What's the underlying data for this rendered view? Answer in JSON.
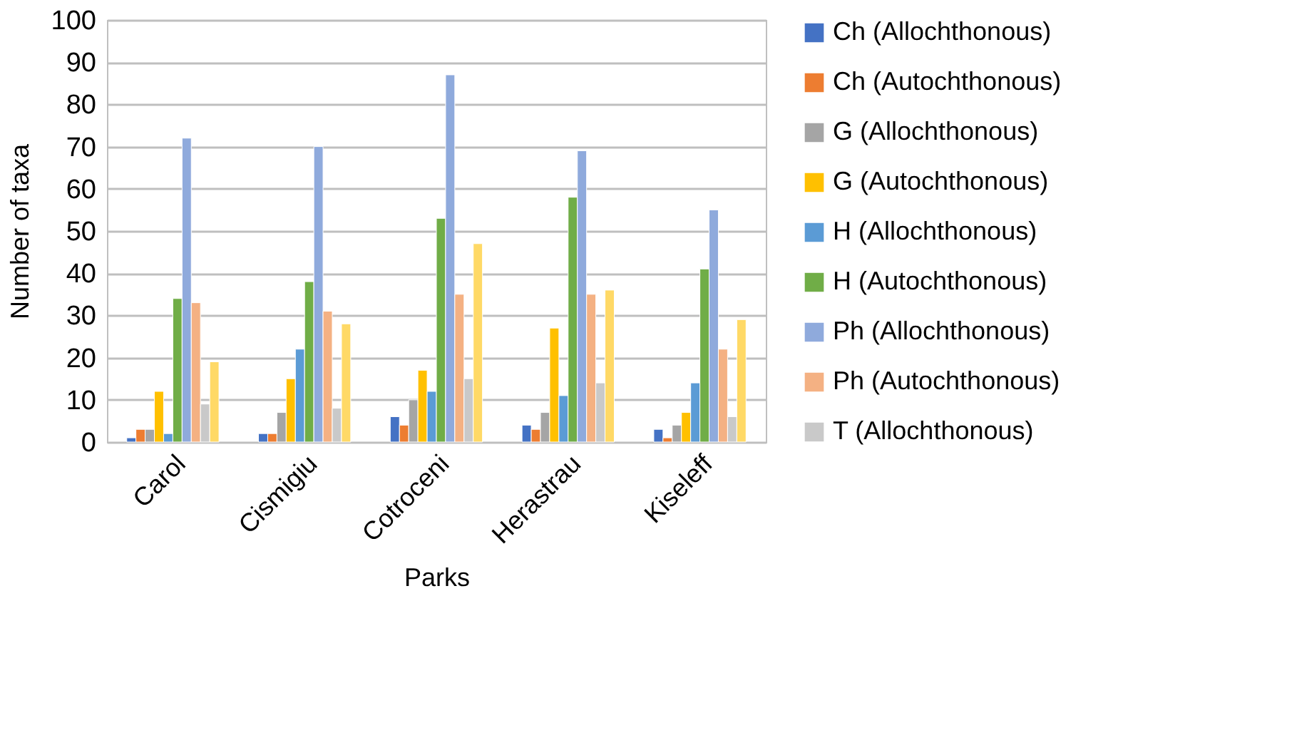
{
  "chart_data": {
    "type": "bar",
    "xlabel": "Parks",
    "ylabel": "Number of taxa",
    "categories": [
      "Carol",
      "Cismigiu",
      "Cotroceni",
      "Herastrau",
      "Kiseleff"
    ],
    "series": [
      {
        "name": "Ch (Allochthonous)",
        "color": "#4472c4",
        "values": [
          1,
          2,
          6,
          4,
          3
        ]
      },
      {
        "name": "Ch (Autochthonous)",
        "color": "#ed7d31",
        "values": [
          3,
          2,
          4,
          3,
          1
        ]
      },
      {
        "name": "G (Allochthonous)",
        "color": "#a5a5a5",
        "values": [
          3,
          7,
          10,
          7,
          4
        ]
      },
      {
        "name": "G (Autochthonous)",
        "color": "#ffc000",
        "values": [
          12,
          15,
          17,
          27,
          7
        ]
      },
      {
        "name": "H (Allochthonous)",
        "color": "#5b9bd5",
        "values": [
          2,
          22,
          12,
          11,
          14
        ]
      },
      {
        "name": "H (Autochthonous)",
        "color": "#70ad47",
        "values": [
          34,
          38,
          53,
          58,
          41
        ]
      },
      {
        "name": "Ph (Allochthonous)",
        "color": "#8faadc",
        "values": [
          72,
          70,
          87,
          69,
          55
        ]
      },
      {
        "name": "Ph (Autochthonous)",
        "color": "#f4b183",
        "values": [
          33,
          31,
          35,
          35,
          22
        ]
      },
      {
        "name": "T (Allochthonous)",
        "color": "#c9c9c9",
        "values": [
          9,
          8,
          15,
          14,
          6
        ]
      },
      {
        "color": "#ffd966",
        "values": [
          19,
          28,
          47,
          36,
          29
        ]
      }
    ],
    "ylim": [
      0,
      100
    ],
    "yticks": [
      0,
      10,
      20,
      30,
      40,
      50,
      60,
      70,
      80,
      90,
      100
    ],
    "grid": "y",
    "legend": "right"
  }
}
